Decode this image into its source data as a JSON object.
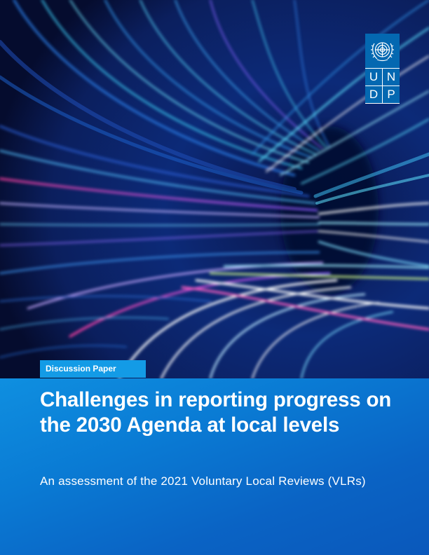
{
  "cover": {
    "label": "Discussion Paper",
    "title": "Challenges in reporting progress on the 2030 Agenda at local levels",
    "subtitle": "An assessment of the 2021 Voluntary Local Reviews (VLRs)"
  },
  "logo": {
    "organization": "UNDP",
    "letters": [
      "U",
      "N",
      "D",
      "P"
    ],
    "emblem_icon": "un-emblem-icon",
    "color": "#0468b1"
  },
  "hero_image": {
    "icon": "light-streaks-image",
    "colors": [
      "#03103a",
      "#1d6fd6",
      "#3fd0f0",
      "#b24fd8",
      "#e84aa8",
      "#ffffff"
    ]
  }
}
